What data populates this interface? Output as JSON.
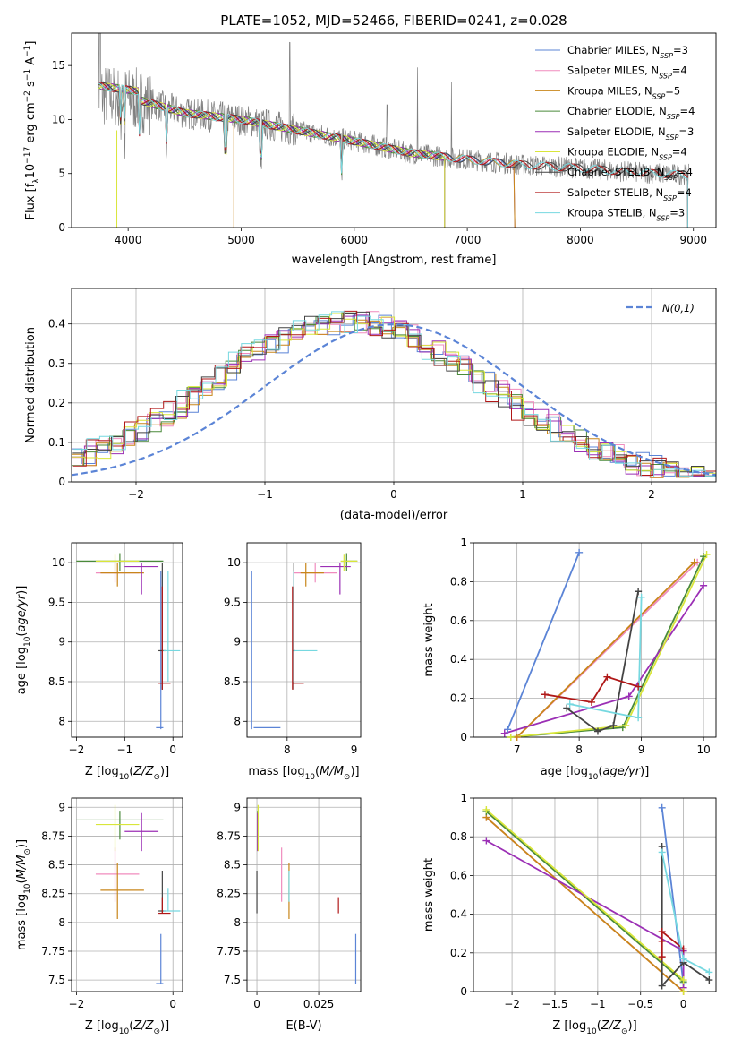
{
  "figure": {
    "title": "PLATE=1052, MJD=52466, FIBERID=0241, z=0.028"
  },
  "colors": {
    "Chabrier MILES": "#5b84d6",
    "Salpeter MILES": "#f08cbe",
    "Kroupa MILES": "#c8861a",
    "Chabrier ELODIE": "#4a8a3a",
    "Salpeter ELODIE": "#9b2fb5",
    "Kroupa ELODIE": "#d9e63a",
    "Chabrier STELIB": "#444444",
    "Salpeter STELIB": "#b01818",
    "Kroupa STELIB": "#76d8e0",
    "data": "#808080",
    "normal": "#5b84d6"
  },
  "chart_data": [
    {
      "id": "spectrum",
      "type": "line",
      "title": "PLATE=1052, MJD=52466, FIBERID=0241, z=0.028",
      "xlabel": "wavelength [Angstrom, rest frame]",
      "ylabel": "Flux [f_λ 10^-17 erg cm^-2 s^-1 A^-1]",
      "xlim": [
        3500,
        9200
      ],
      "ylim": [
        0,
        18
      ],
      "xticks": [
        4000,
        5000,
        6000,
        7000,
        8000,
        9000
      ],
      "yticks": [
        0,
        5,
        10,
        15
      ],
      "legend_position": "top-right",
      "legend": [
        {
          "series": "Chabrier MILES",
          "nssp": "3"
        },
        {
          "series": "Salpeter MILES",
          "nssp": "4"
        },
        {
          "series": "Kroupa MILES",
          "nssp": "5"
        },
        {
          "series": "Chabrier ELODIE",
          "nssp": "4"
        },
        {
          "series": "Salpeter ELODIE",
          "nssp": "3"
        },
        {
          "series": "Kroupa ELODIE",
          "nssp": "4"
        },
        {
          "series": "Chabrier STELIB",
          "nssp": "4"
        },
        {
          "series": "Salpeter STELIB",
          "nssp": "4"
        },
        {
          "series": "Kroupa STELIB",
          "nssp": "3"
        }
      ],
      "continuum": {
        "x": [
          3750,
          3900,
          4100,
          4500,
          5000,
          5500,
          6000,
          6500,
          7000,
          7500,
          8000,
          8500,
          8900
        ],
        "y": [
          12.3,
          12.1,
          11.8,
          10.6,
          10.0,
          9.0,
          8.0,
          6.9,
          6.3,
          5.8,
          5.5,
          5.1,
          4.9
        ]
      },
      "model_end": {
        "Chabrier MILES": 7420,
        "Salpeter MILES": 7420,
        "Kroupa MILES": 7420,
        "Chabrier ELODIE": 6800,
        "Salpeter ELODIE": 6800,
        "Kroupa ELODIE": 6800,
        "Chabrier STELIB": 8950,
        "Salpeter STELIB": 8950,
        "Kroupa STELIB": 8950
      }
    },
    {
      "id": "residuals",
      "type": "line",
      "xlabel": "(data-model)/error",
      "ylabel": "Normed distribution",
      "xlim": [
        -2.5,
        2.5
      ],
      "ylim": [
        0,
        0.49
      ],
      "xticks": [
        -2,
        -1,
        0,
        1,
        2
      ],
      "yticks": [
        0.0,
        0.1,
        0.2,
        0.3,
        0.4
      ],
      "grid": true,
      "legend_position": "top-right",
      "normal_label": "N(0,1)",
      "hist_bin_width": 0.1
    },
    {
      "id": "age_vs_Z",
      "type": "scatter",
      "xlabel": "Z [log10(Z/Z⊙)]",
      "ylabel": "age  [log10(age/yr)]",
      "xlim": [
        -2.1,
        0.2
      ],
      "ylim": [
        7.8,
        10.25
      ],
      "xticks": [
        -2,
        -1,
        0
      ],
      "yticks": [
        8.0,
        8.5,
        9.0,
        9.5,
        10.0
      ],
      "grid": true
    },
    {
      "id": "age_vs_mass",
      "type": "scatter",
      "xlabel": "mass [log10(M/M⊙)]",
      "xlim": [
        7.4,
        9.1
      ],
      "ylim": [
        7.8,
        10.25
      ],
      "xticks": [
        8,
        9
      ],
      "yticks": [
        8.0,
        8.5,
        9.0,
        9.5,
        10.0
      ],
      "grid": true
    },
    {
      "id": "weight_vs_age",
      "type": "line",
      "xlabel": "age  [log10(age/yr)]",
      "ylabel": "mass weight",
      "xlim": [
        6.3,
        10.2
      ],
      "ylim": [
        0,
        1.0
      ],
      "xticks": [
        7,
        8,
        9,
        10
      ],
      "yticks": [
        0.0,
        0.2,
        0.4,
        0.6,
        0.8,
        1.0
      ],
      "grid": true,
      "series": [
        {
          "name": "Chabrier MILES",
          "x": [
            6.85,
            8.0
          ],
          "y": [
            0.04,
            0.95
          ]
        },
        {
          "name": "Salpeter MILES",
          "x": [
            7.0,
            9.9
          ],
          "y": [
            0.0,
            0.9
          ]
        },
        {
          "name": "Kroupa MILES",
          "x": [
            7.0,
            9.85
          ],
          "y": [
            0.0,
            0.9
          ]
        },
        {
          "name": "Chabrier ELODIE",
          "x": [
            6.9,
            8.7,
            10.0
          ],
          "y": [
            0.0,
            0.05,
            0.93
          ]
        },
        {
          "name": "Salpeter ELODIE",
          "x": [
            6.8,
            8.8,
            10.0
          ],
          "y": [
            0.02,
            0.21,
            0.78
          ]
        },
        {
          "name": "Kroupa ELODIE",
          "x": [
            6.9,
            8.75,
            10.05
          ],
          "y": [
            0.0,
            0.06,
            0.94
          ]
        },
        {
          "name": "Chabrier STELIB",
          "x": [
            7.8,
            8.3,
            8.55,
            8.95
          ],
          "y": [
            0.15,
            0.03,
            0.06,
            0.75
          ]
        },
        {
          "name": "Salpeter STELIB",
          "x": [
            7.45,
            8.2,
            8.45,
            8.95
          ],
          "y": [
            0.22,
            0.18,
            0.31,
            0.26
          ]
        },
        {
          "name": "Kroupa STELIB",
          "x": [
            7.85,
            8.95,
            9.0
          ],
          "y": [
            0.17,
            0.1,
            0.72
          ]
        }
      ]
    },
    {
      "id": "mass_vs_Z",
      "type": "scatter",
      "xlabel": "Z [log10(Z/Z⊙)]",
      "ylabel": "mass [log10(M/M⊙)]",
      "xlim": [
        -2.1,
        0.2
      ],
      "ylim": [
        7.4,
        9.08
      ],
      "xticks": [
        -2,
        0
      ],
      "yticks": [
        7.5,
        7.75,
        8.0,
        8.25,
        8.5,
        8.75,
        9.0
      ],
      "grid": true
    },
    {
      "id": "mass_vs_EBV",
      "type": "scatter",
      "xlabel": "E(B-V)",
      "xlim": [
        -0.004,
        0.042
      ],
      "ylim": [
        7.4,
        9.08
      ],
      "xticks": [
        0.0,
        0.025
      ],
      "yticks": [
        7.5,
        7.75,
        8.0,
        8.25,
        8.5,
        8.75,
        9.0
      ],
      "grid": true,
      "series": [
        {
          "name": "Chabrier MILES",
          "x": 0.04,
          "ylo": 7.47,
          "yhi": 7.9
        },
        {
          "name": "Salpeter MILES",
          "x": 0.01,
          "ylo": 8.18,
          "yhi": 8.65
        },
        {
          "name": "Kroupa MILES",
          "x": 0.013,
          "ylo": 8.03,
          "yhi": 8.52
        },
        {
          "name": "Chabrier ELODIE",
          "x": 0.0003,
          "ylo": 8.72,
          "yhi": 8.97
        },
        {
          "name": "Salpeter ELODIE",
          "x": 0.0002,
          "ylo": 8.62,
          "yhi": 8.95
        },
        {
          "name": "Kroupa ELODIE",
          "x": 0.0005,
          "ylo": 8.62,
          "yhi": 9.02
        },
        {
          "name": "Chabrier STELIB",
          "x": 0.0,
          "ylo": 8.08,
          "yhi": 8.45
        },
        {
          "name": "Salpeter STELIB",
          "x": 0.033,
          "ylo": 8.08,
          "yhi": 8.22
        },
        {
          "name": "Kroupa STELIB",
          "x": 0.013,
          "ylo": 8.18,
          "yhi": 8.45
        }
      ]
    },
    {
      "id": "weight_vs_Z",
      "type": "line",
      "xlabel": "Z [log10(Z/Z⊙)]",
      "ylabel": "mass weight",
      "xlim": [
        -2.45,
        0.38
      ],
      "ylim": [
        0,
        1.0
      ],
      "xticks": [
        -2.0,
        -1.5,
        -1.0,
        -0.5,
        0.0
      ],
      "yticks": [
        0.0,
        0.2,
        0.4,
        0.6,
        0.8,
        1.0
      ],
      "grid": true,
      "series": [
        {
          "name": "Chabrier MILES",
          "x": [
            -0.25,
            0.0
          ],
          "y": [
            0.95,
            0.04
          ]
        },
        {
          "name": "Salpeter MILES",
          "x": [
            -2.3,
            0.0
          ],
          "y": [
            0.9,
            0.0
          ]
        },
        {
          "name": "Kroupa MILES",
          "x": [
            -2.3,
            0.0
          ],
          "y": [
            0.9,
            0.0
          ]
        },
        {
          "name": "Chabrier ELODIE",
          "x": [
            -2.3,
            0.0
          ],
          "y": [
            0.93,
            0.05
          ]
        },
        {
          "name": "Salpeter ELODIE",
          "x": [
            -2.3,
            0.0,
            0.0
          ],
          "y": [
            0.78,
            0.21,
            0.02
          ]
        },
        {
          "name": "Kroupa ELODIE",
          "x": [
            -2.3,
            0.0,
            0.0
          ],
          "y": [
            0.94,
            0.06,
            0.0
          ]
        },
        {
          "name": "Chabrier STELIB",
          "x": [
            -0.25,
            -0.25,
            0.0,
            0.3
          ],
          "y": [
            0.75,
            0.03,
            0.15,
            0.06
          ]
        },
        {
          "name": "Salpeter STELIB",
          "x": [
            -0.25,
            -0.25,
            -0.25,
            0.0
          ],
          "y": [
            0.18,
            0.26,
            0.31,
            0.22
          ]
        },
        {
          "name": "Kroupa STELIB",
          "x": [
            -0.25,
            0.0,
            0.3
          ],
          "y": [
            0.72,
            0.17,
            0.1
          ]
        }
      ]
    }
  ],
  "ssp_points": [
    {
      "series": "Chabrier MILES",
      "Z": -0.25,
      "Zlo": -0.35,
      "Zhi": -0.2,
      "age": 7.92,
      "agelo": 7.9,
      "agehi": 9.9,
      "mass": 7.47,
      "masslo": 7.47,
      "masshi": 7.9,
      "m_lo": 7.5,
      "m_hi": 7.9
    },
    {
      "series": "Salpeter MILES",
      "Z": -1.2,
      "Zlo": -1.6,
      "Zhi": -0.7,
      "age": 9.87,
      "agelo": 9.75,
      "agehi": 10.0,
      "mass": 8.42,
      "masslo": 8.18,
      "masshi": 8.65,
      "m_lo": 8.1,
      "m_hi": 8.75
    },
    {
      "series": "Kroupa MILES",
      "Z": -1.15,
      "Zlo": -1.5,
      "Zhi": -0.6,
      "age": 9.87,
      "agelo": 9.7,
      "agehi": 10.0,
      "mass": 8.28,
      "masslo": 8.03,
      "masshi": 8.52,
      "m_lo": 8.2,
      "m_hi": 8.55
    },
    {
      "series": "Chabrier ELODIE",
      "Z": -1.1,
      "Zlo": -2.0,
      "Zhi": -0.2,
      "age": 10.02,
      "agelo": 9.9,
      "agehi": 10.12,
      "mass": 8.89,
      "masslo": 8.72,
      "masshi": 8.97,
      "m_lo": 8.85,
      "m_hi": 9.05
    },
    {
      "series": "Salpeter ELODIE",
      "Z": -0.65,
      "Zlo": -1.0,
      "Zhi": -0.3,
      "age": 9.95,
      "agelo": 9.6,
      "agehi": 10.0,
      "mass": 8.79,
      "masslo": 8.62,
      "masshi": 8.95,
      "m_lo": 8.5,
      "m_hi": 8.95
    },
    {
      "series": "Kroupa ELODIE",
      "Z": -1.2,
      "Zlo": -1.6,
      "Zhi": -0.7,
      "age": 10.02,
      "agelo": 9.9,
      "agehi": 10.1,
      "mass": 8.85,
      "masslo": 8.62,
      "masshi": 9.02,
      "m_lo": 8.8,
      "m_hi": 9.05
    },
    {
      "series": "Chabrier STELIB",
      "Z": -0.22,
      "Zlo": -0.3,
      "Zhi": -0.15,
      "age": 8.89,
      "agelo": 8.4,
      "agehi": 10.0,
      "mass": 8.1,
      "masslo": 8.08,
      "masshi": 8.45,
      "m_lo": 8.08,
      "m_hi": 8.12
    },
    {
      "series": "Salpeter STELIB",
      "Z": -0.22,
      "Zlo": -0.3,
      "Zhi": -0.05,
      "age": 8.48,
      "agelo": 8.4,
      "agehi": 9.7,
      "mass": 8.08,
      "masslo": 8.08,
      "masshi": 8.22,
      "m_lo": 8.08,
      "m_hi": 8.25
    },
    {
      "series": "Kroupa STELIB",
      "Z": -0.1,
      "Zlo": -0.2,
      "Zhi": 0.15,
      "age": 8.89,
      "agelo": 8.5,
      "agehi": 9.9,
      "mass": 8.1,
      "masslo": 8.1,
      "masshi": 8.3,
      "m_lo": 8.1,
      "m_hi": 8.45
    }
  ]
}
